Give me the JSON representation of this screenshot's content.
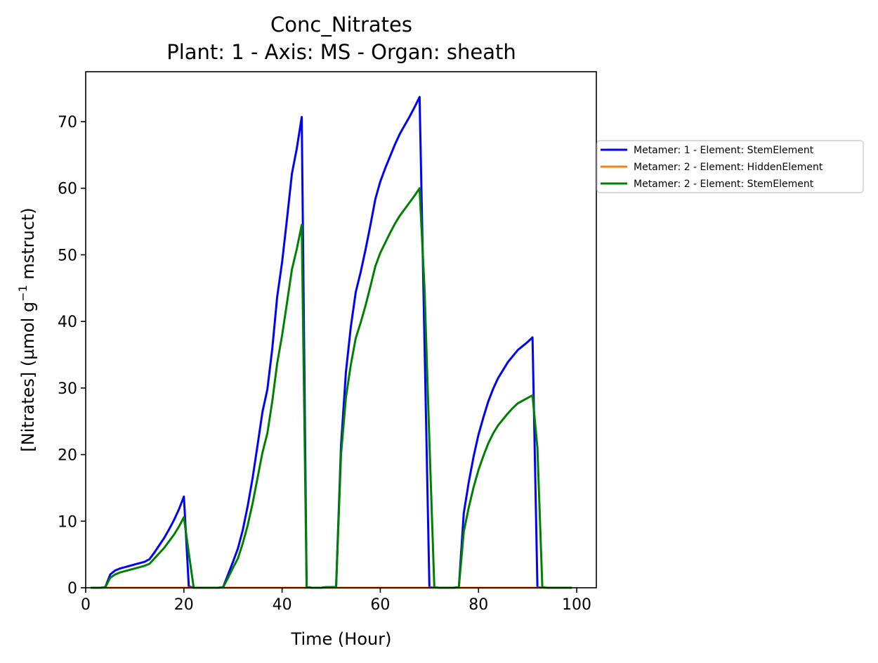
{
  "chart_data": {
    "type": "line",
    "title": "Conc_Nitrates",
    "subtitle": "Plant: 1 - Axis: MS - Organ: sheath",
    "xlabel": "Time (Hour)",
    "ylabel_prefix": "[Nitrates] (µmol g",
    "ylabel_sup": "−1",
    "ylabel_suffix": " mstruct)",
    "xlim": [
      0,
      104
    ],
    "ylim": [
      0,
      77.5
    ],
    "xticks": [
      0,
      20,
      40,
      60,
      80,
      100
    ],
    "yticks": [
      0,
      10,
      20,
      30,
      40,
      50,
      60,
      70
    ],
    "grid": false,
    "legend_position": "right, outside plot",
    "series": [
      {
        "name": "Metamer: 1 - Element: StemElement",
        "color": "#0000ff",
        "x": [
          1,
          2,
          3,
          4,
          5,
          6,
          7,
          8,
          9,
          10,
          11,
          12,
          13,
          14,
          15,
          16,
          17,
          18,
          19,
          20,
          21,
          22,
          23,
          24,
          25,
          26,
          27,
          28,
          29,
          30,
          31,
          32,
          33,
          34,
          35,
          36,
          37,
          38,
          39,
          40,
          41,
          42,
          43,
          44,
          45,
          46,
          47,
          48,
          49,
          50,
          51,
          52,
          53,
          54,
          55,
          56,
          57,
          58,
          59,
          60,
          61,
          62,
          63,
          64,
          65,
          66,
          67,
          68,
          69,
          70,
          71,
          72,
          73,
          74,
          75,
          76,
          77,
          78,
          79,
          80,
          81,
          82,
          83,
          84,
          85,
          86,
          87,
          88,
          89,
          90,
          91,
          92,
          93,
          94,
          95,
          96,
          97,
          98,
          99
        ],
        "y": [
          0,
          0,
          0,
          0.1,
          2.0,
          2.6,
          2.9,
          3.1,
          3.3,
          3.5,
          3.7,
          3.9,
          4.3,
          5.3,
          6.4,
          7.5,
          8.8,
          10.2,
          11.8,
          13.7,
          0.2,
          0,
          0,
          0,
          0,
          0,
          0,
          0.1,
          2.0,
          3.9,
          5.9,
          8.7,
          12.3,
          16.5,
          21.4,
          26.4,
          29.8,
          35.9,
          43.7,
          48.9,
          55.4,
          62.2,
          66.0,
          70.7,
          0.1,
          0,
          0,
          0,
          0.1,
          0.1,
          0.1,
          21.3,
          32.4,
          39.2,
          44.4,
          47.4,
          50.8,
          54.5,
          58.4,
          61.0,
          63.0,
          64.8,
          66.6,
          68.2,
          69.5,
          70.8,
          72.2,
          73.7,
          37.0,
          0.1,
          0,
          0,
          0,
          0,
          0,
          0.1,
          11.2,
          15.8,
          19.7,
          23.0,
          25.6,
          28.0,
          29.9,
          31.5,
          32.7,
          33.9,
          34.8,
          35.7,
          36.3,
          36.9,
          37.6,
          0.1,
          0,
          0,
          0,
          0,
          0,
          0,
          0
        ]
      },
      {
        "name": "Metamer: 2 - Element: HiddenElement",
        "color": "#ff7f0e",
        "x": [
          1,
          99
        ],
        "y": [
          0,
          0
        ]
      },
      {
        "name": "Metamer: 2 - Element: StemElement",
        "color": "#008000",
        "x": [
          1,
          2,
          3,
          4,
          5,
          6,
          7,
          8,
          9,
          10,
          11,
          12,
          13,
          14,
          15,
          16,
          17,
          18,
          19,
          20,
          21,
          22,
          23,
          24,
          25,
          26,
          27,
          28,
          29,
          30,
          31,
          32,
          33,
          34,
          35,
          36,
          37,
          38,
          39,
          40,
          41,
          42,
          43,
          44,
          45,
          46,
          47,
          48,
          49,
          50,
          51,
          52,
          53,
          54,
          55,
          56,
          57,
          58,
          59,
          60,
          61,
          62,
          63,
          64,
          65,
          66,
          67,
          68,
          69,
          70,
          71,
          72,
          73,
          74,
          75,
          76,
          77,
          78,
          79,
          80,
          81,
          82,
          83,
          84,
          85,
          86,
          87,
          88,
          89,
          90,
          91,
          92,
          93,
          94,
          95,
          96,
          97,
          98,
          99
        ],
        "y": [
          0,
          0,
          0,
          0.1,
          1.5,
          2.0,
          2.3,
          2.5,
          2.7,
          2.9,
          3.1,
          3.3,
          3.6,
          4.4,
          5.2,
          6.0,
          7.0,
          8.0,
          9.2,
          10.6,
          5.2,
          0,
          0,
          0,
          0,
          0,
          0,
          0.1,
          1.5,
          3.0,
          4.4,
          6.7,
          9.4,
          12.7,
          16.5,
          20.3,
          23.2,
          28.0,
          33.7,
          37.9,
          42.8,
          47.8,
          50.9,
          54.5,
          0.1,
          0,
          0,
          0,
          0.1,
          0.1,
          0.1,
          20.0,
          28.6,
          33.5,
          37.5,
          39.8,
          42.4,
          45.3,
          48.3,
          50.3,
          51.8,
          53.3,
          54.7,
          55.9,
          56.9,
          57.9,
          58.9,
          60.0,
          45.0,
          22.0,
          0.1,
          0,
          0,
          0,
          0,
          0.1,
          8.4,
          12.0,
          15.1,
          17.7,
          19.8,
          21.7,
          23.2,
          24.4,
          25.3,
          26.2,
          27.0,
          27.7,
          28.1,
          28.5,
          28.9,
          21.0,
          0.1,
          0,
          0,
          0,
          0,
          0,
          0
        ]
      }
    ]
  }
}
